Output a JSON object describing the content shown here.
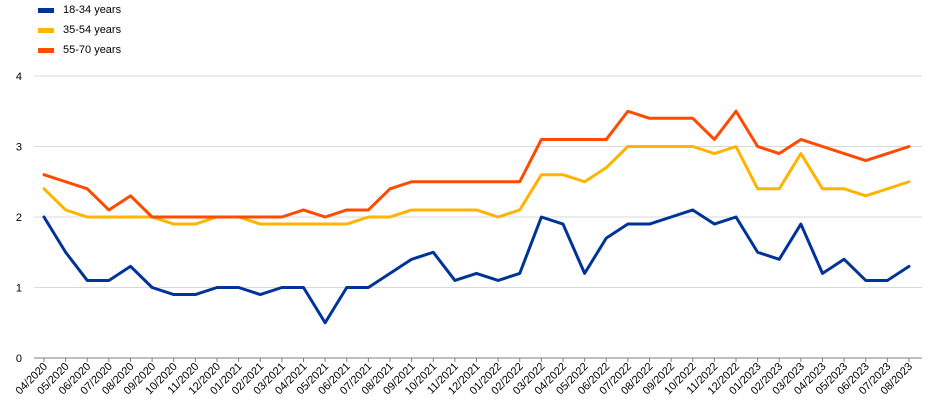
{
  "chart_data": {
    "type": "line",
    "title": "",
    "xlabel": "",
    "ylabel": "",
    "ylim": [
      0,
      4
    ],
    "yticks": [
      0,
      1,
      2,
      3,
      4
    ],
    "grid": "horizontal",
    "legend_position": "top-left",
    "categories": [
      "04/2020",
      "05/2020",
      "06/2020",
      "07/2020",
      "08/2020",
      "09/2020",
      "10/2020",
      "11/2020",
      "12/2020",
      "01/2021",
      "02/2021",
      "03/2021",
      "04/2021",
      "05/2021",
      "06/2021",
      "07/2021",
      "08/2021",
      "09/2021",
      "10/2021",
      "11/2021",
      "12/2021",
      "01/2022",
      "02/2022",
      "03/2022",
      "04/2022",
      "05/2022",
      "06/2022",
      "07/2022",
      "08/2022",
      "09/2022",
      "10/2022",
      "11/2022",
      "12/2022",
      "01/2023",
      "02/2023",
      "03/2023",
      "04/2023",
      "05/2023",
      "06/2023",
      "07/2023",
      "08/2023"
    ],
    "series": [
      {
        "name": "18-34 years",
        "color": "#003399",
        "values": [
          2.0,
          1.5,
          1.1,
          1.1,
          1.3,
          1.0,
          0.9,
          0.9,
          1.0,
          1.0,
          0.9,
          1.0,
          1.0,
          0.5,
          1.0,
          1.0,
          1.2,
          1.4,
          1.5,
          1.1,
          1.2,
          1.1,
          1.2,
          2.0,
          1.9,
          1.2,
          1.7,
          1.9,
          1.9,
          2.0,
          2.1,
          1.9,
          2.0,
          1.5,
          1.4,
          1.9,
          1.2,
          1.4,
          1.1,
          1.1,
          1.3
        ]
      },
      {
        "name": "35-54 years",
        "color": "#FFB400",
        "values": [
          2.4,
          2.1,
          2.0,
          2.0,
          2.0,
          2.0,
          1.9,
          1.9,
          2.0,
          2.0,
          1.9,
          1.9,
          1.9,
          1.9,
          1.9,
          2.0,
          2.0,
          2.1,
          2.1,
          2.1,
          2.1,
          2.0,
          2.1,
          2.6,
          2.6,
          2.5,
          2.7,
          3.0,
          3.0,
          3.0,
          3.0,
          2.9,
          3.0,
          2.4,
          2.4,
          2.9,
          2.4,
          2.4,
          2.3,
          2.4,
          2.5
        ]
      },
      {
        "name": "55-70 years",
        "color": "#FF4B00",
        "values": [
          2.6,
          2.5,
          2.4,
          2.1,
          2.3,
          2.0,
          2.0,
          2.0,
          2.0,
          2.0,
          2.0,
          2.0,
          2.1,
          2.0,
          2.1,
          2.1,
          2.4,
          2.5,
          2.5,
          2.5,
          2.5,
          2.5,
          2.5,
          3.1,
          3.1,
          3.1,
          3.1,
          3.5,
          3.4,
          3.4,
          3.4,
          3.1,
          3.5,
          3.0,
          2.9,
          3.1,
          3.0,
          2.9,
          2.8,
          2.9,
          3.0
        ]
      }
    ]
  }
}
